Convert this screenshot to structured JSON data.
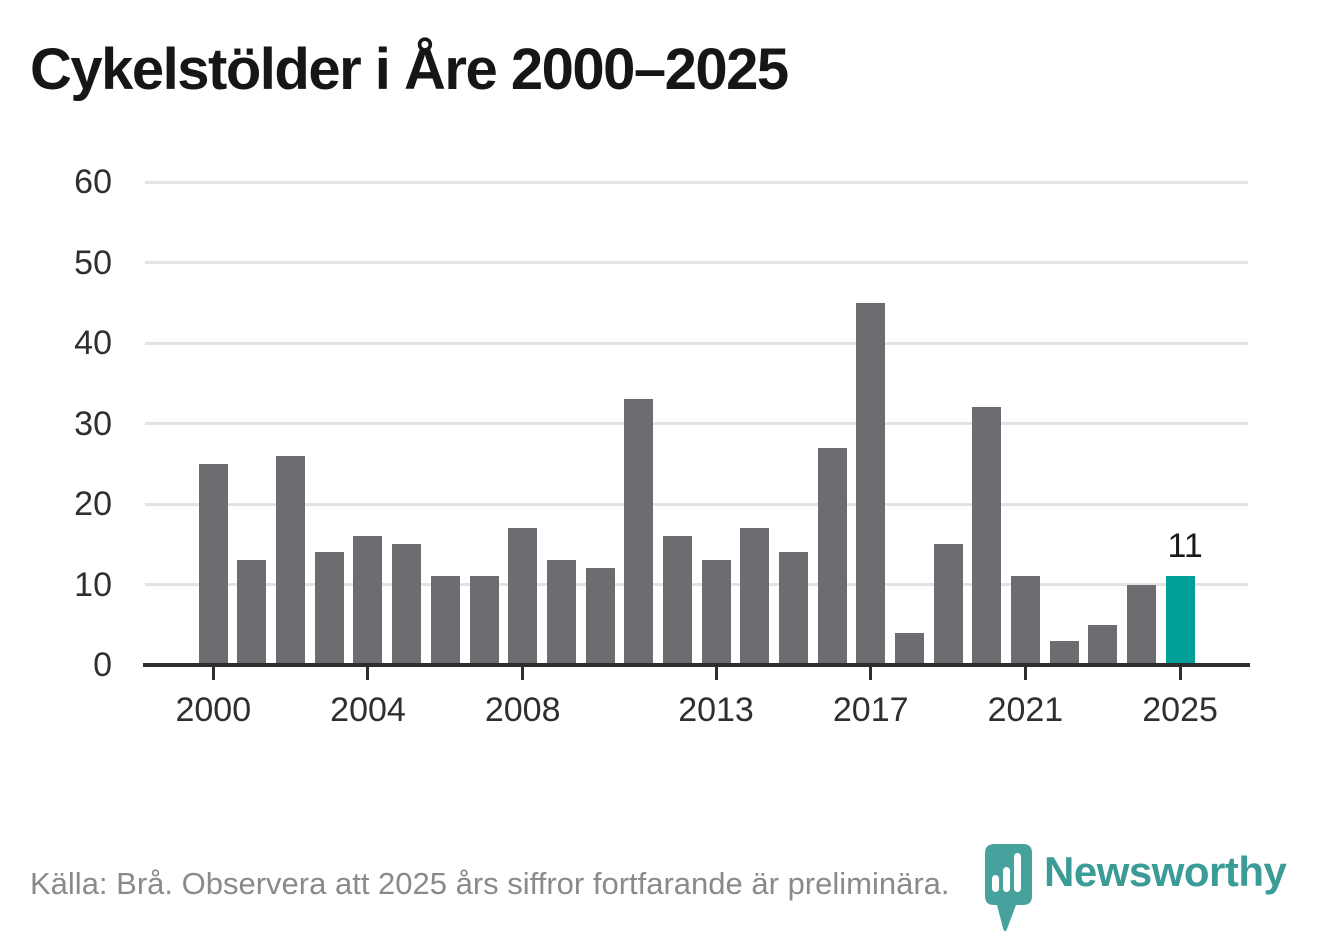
{
  "title": "Cykelstölder i Åre 2000–2025",
  "footer": {
    "source_note": "Källa: Brå. Observera att 2025 års siffror fortfarande är preliminära."
  },
  "branding": {
    "logo_text": "Newsworthy",
    "logo_icon": "newsworthy-pin-barchart-icon",
    "brand_color": "#3a9b97"
  },
  "chart_data": {
    "type": "bar",
    "title": "Cykelstölder i Åre 2000–2025",
    "x": [
      2000,
      2001,
      2002,
      2003,
      2004,
      2005,
      2006,
      2007,
      2008,
      2009,
      2010,
      2011,
      2012,
      2013,
      2014,
      2015,
      2016,
      2017,
      2018,
      2019,
      2020,
      2021,
      2022,
      2023,
      2024,
      2025
    ],
    "values": [
      25,
      13,
      26,
      14,
      16,
      15,
      11,
      11,
      17,
      13,
      12,
      33,
      16,
      13,
      17,
      14,
      27,
      45,
      4,
      15,
      32,
      11,
      3,
      5,
      10,
      11
    ],
    "x_tick_years": [
      2000,
      2004,
      2008,
      2013,
      2017,
      2021,
      2025
    ],
    "x_tick_labels": [
      "2000",
      "2004",
      "2008",
      "2013",
      "2017",
      "2021",
      "2025"
    ],
    "y_ticks": [
      0,
      10,
      20,
      30,
      40,
      50,
      60
    ],
    "ylim": [
      0,
      62
    ],
    "xlabel": "",
    "ylabel": "",
    "grid": true,
    "legend": "none",
    "bar_color": "#6c6c71",
    "highlight_year": 2025,
    "highlight_color": "#00a099",
    "highlight_value_label": "11",
    "gridline_color": "#e3e3e3",
    "axis_color": "#2d2d2d"
  }
}
